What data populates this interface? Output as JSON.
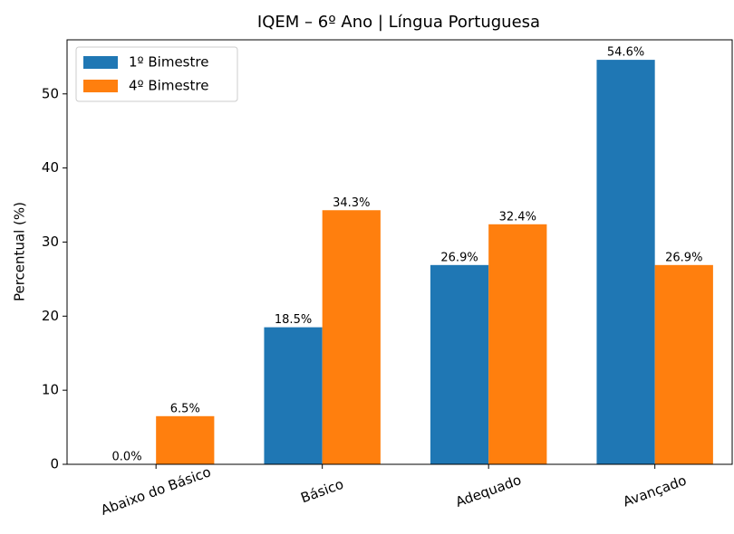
{
  "chart_data": {
    "type": "bar",
    "title": "IQEM – 6º Ano | Língua Portuguesa",
    "ylabel": "Percentual (%)",
    "categories": [
      "Abaixo do Básico",
      "Básico",
      "Adequado",
      "Avançado"
    ],
    "series": [
      {
        "name": "1º Bimestre",
        "color": "#1f77b4",
        "values": [
          0.0,
          18.5,
          26.9,
          54.6
        ],
        "value_labels": [
          "0.0%",
          "18.5%",
          "26.9%",
          "54.6%"
        ]
      },
      {
        "name": "4º Bimestre",
        "color": "#ff7f0e",
        "values": [
          6.5,
          34.3,
          32.4,
          26.9
        ],
        "value_labels": [
          "6.5%",
          "34.3%",
          "32.4%",
          "26.9%"
        ]
      }
    ],
    "ylim": [
      0,
      57.3
    ],
    "yticks": [
      0,
      10,
      20,
      30,
      40,
      50
    ],
    "grid": false,
    "legend": "upper left"
  }
}
